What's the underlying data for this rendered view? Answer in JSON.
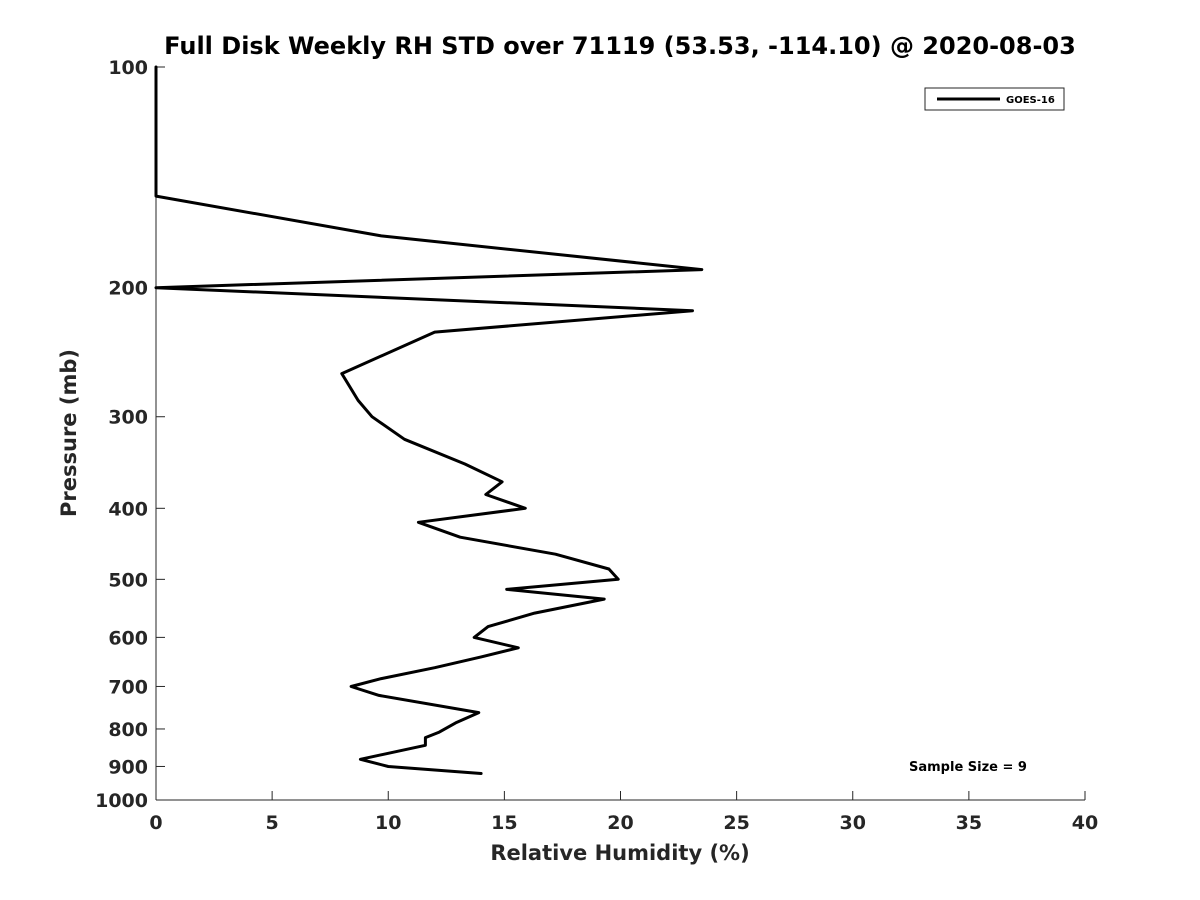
{
  "chart_data": {
    "type": "line",
    "title": "Full Disk Weekly RH STD over 71119 (53.53, -114.10) @ 2020-08-03",
    "xlabel": "Relative Humidity (%)",
    "ylabel": "Pressure (mb)",
    "xlim": [
      0,
      40
    ],
    "ylim": [
      100,
      1000
    ],
    "y_scale": "log",
    "y_reversed": true,
    "grid": false,
    "legend_position": "top-right",
    "x_ticks": [
      0,
      5,
      10,
      15,
      20,
      25,
      30,
      35,
      40
    ],
    "x_tick_labels": [
      "0",
      "5",
      "10",
      "15",
      "20",
      "25",
      "30",
      "35",
      "40"
    ],
    "y_ticks": [
      100,
      200,
      300,
      400,
      500,
      600,
      700,
      800,
      900,
      1000
    ],
    "y_tick_labels": [
      "100",
      "200",
      "300",
      "400",
      "500",
      "600",
      "700",
      "800",
      "900",
      "1000"
    ],
    "series": [
      {
        "name": "GOES-16",
        "color": "#000000",
        "points": [
          {
            "x": 0,
            "y": 100
          },
          {
            "x": 0,
            "y": 150
          },
          {
            "x": 9.7,
            "y": 170
          },
          {
            "x": 23.5,
            "y": 189
          },
          {
            "x": 0,
            "y": 200
          },
          {
            "x": 23.1,
            "y": 215
          },
          {
            "x": 12,
            "y": 230
          },
          {
            "x": 8,
            "y": 262
          },
          {
            "x": 8.7,
            "y": 285
          },
          {
            "x": 9.3,
            "y": 300
          },
          {
            "x": 10.7,
            "y": 322
          },
          {
            "x": 13.3,
            "y": 348
          },
          {
            "x": 14.9,
            "y": 368
          },
          {
            "x": 14.2,
            "y": 383
          },
          {
            "x": 15.9,
            "y": 400
          },
          {
            "x": 11.3,
            "y": 418
          },
          {
            "x": 13.1,
            "y": 438
          },
          {
            "x": 17.2,
            "y": 462
          },
          {
            "x": 19.5,
            "y": 484
          },
          {
            "x": 19.9,
            "y": 500
          },
          {
            "x": 15.1,
            "y": 516
          },
          {
            "x": 19.3,
            "y": 532
          },
          {
            "x": 16.3,
            "y": 556
          },
          {
            "x": 14.3,
            "y": 580
          },
          {
            "x": 13.7,
            "y": 600
          },
          {
            "x": 15.6,
            "y": 620
          },
          {
            "x": 14,
            "y": 638
          },
          {
            "x": 12,
            "y": 660
          },
          {
            "x": 9.7,
            "y": 683
          },
          {
            "x": 8.4,
            "y": 700
          },
          {
            "x": 9.6,
            "y": 720
          },
          {
            "x": 13.9,
            "y": 760
          },
          {
            "x": 12.9,
            "y": 785
          },
          {
            "x": 12.2,
            "y": 808
          },
          {
            "x": 11.6,
            "y": 822
          },
          {
            "x": 11.6,
            "y": 842
          },
          {
            "x": 8.8,
            "y": 880
          },
          {
            "x": 10,
            "y": 900
          },
          {
            "x": 14,
            "y": 920
          }
        ]
      }
    ],
    "annotation": "Sample Size = 9"
  }
}
